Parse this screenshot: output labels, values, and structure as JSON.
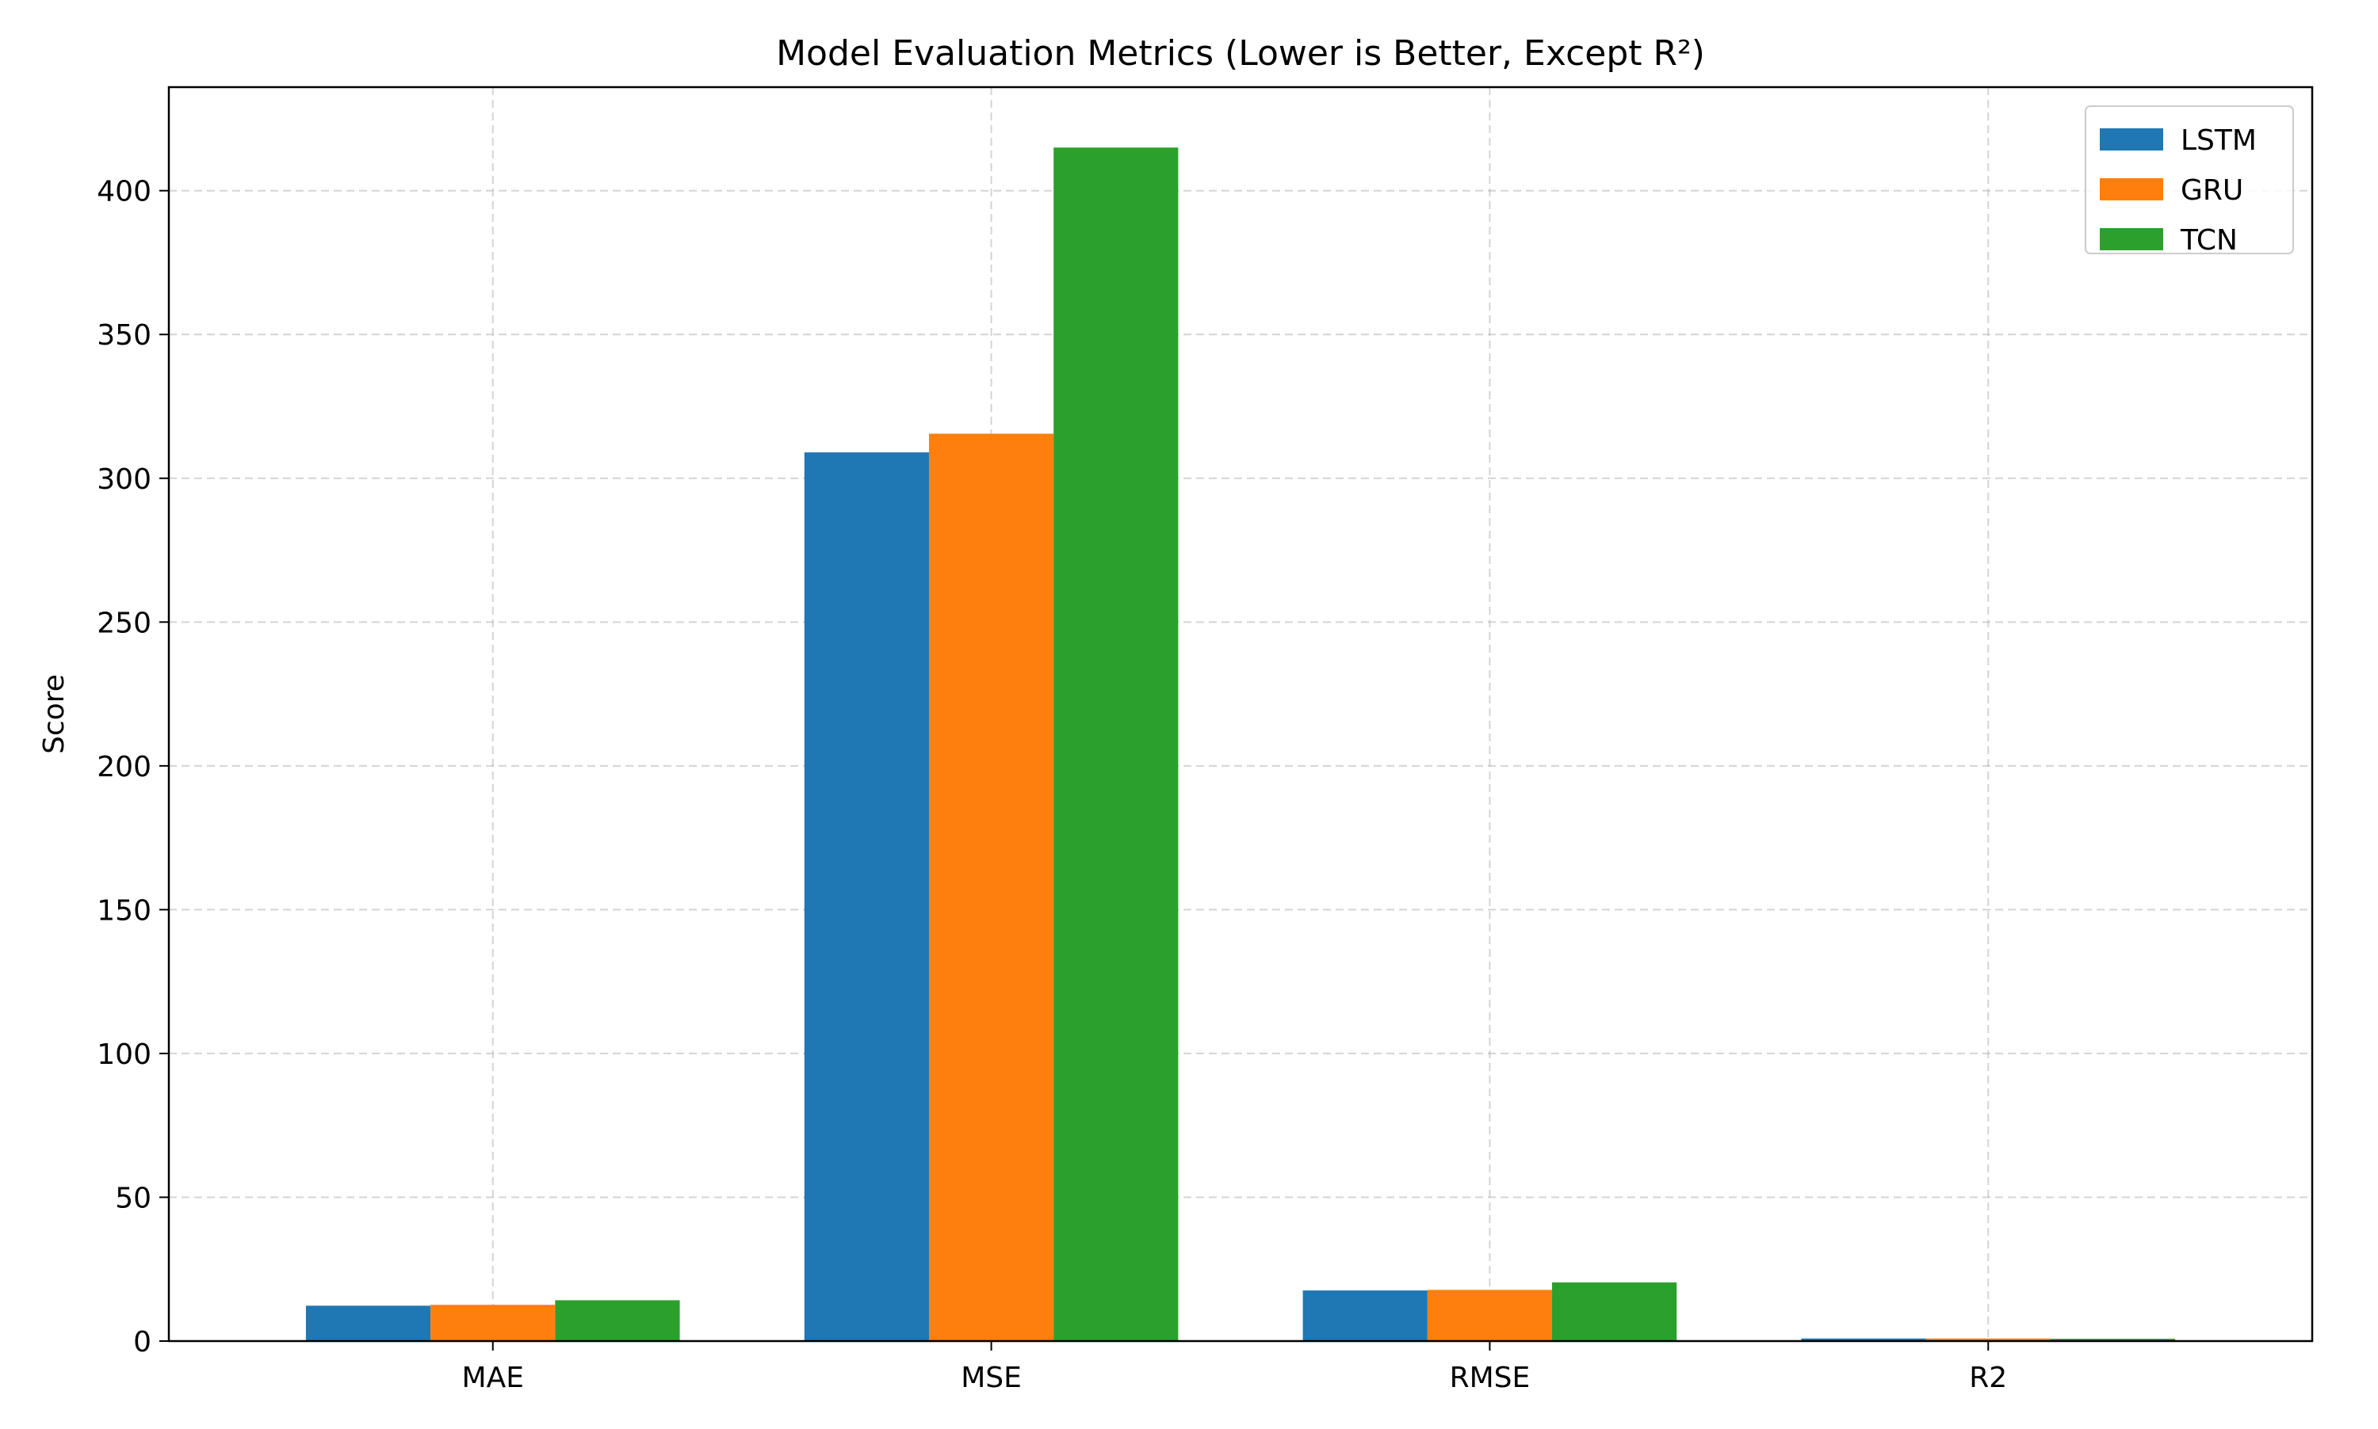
{
  "chart_data": {
    "type": "bar",
    "title": "Model Evaluation Metrics (Lower is Better, Except R²)",
    "xlabel": "",
    "ylabel": "Score",
    "categories": [
      "MAE",
      "MSE",
      "RMSE",
      "R2"
    ],
    "series": [
      {
        "name": "LSTM",
        "color": "#1f77b4",
        "values": [
          12.3,
          309.0,
          17.6,
          0.9
        ]
      },
      {
        "name": "GRU",
        "color": "#ff7f0e",
        "values": [
          12.6,
          315.5,
          17.8,
          0.9
        ]
      },
      {
        "name": "TCN",
        "color": "#2ca02c",
        "values": [
          14.2,
          415.0,
          20.4,
          0.8
        ]
      }
    ],
    "ylim": [
      0,
      436
    ],
    "yticks": [
      0,
      50,
      100,
      150,
      200,
      250,
      300,
      350,
      400
    ],
    "grid": true,
    "legend_position": "top-right"
  }
}
